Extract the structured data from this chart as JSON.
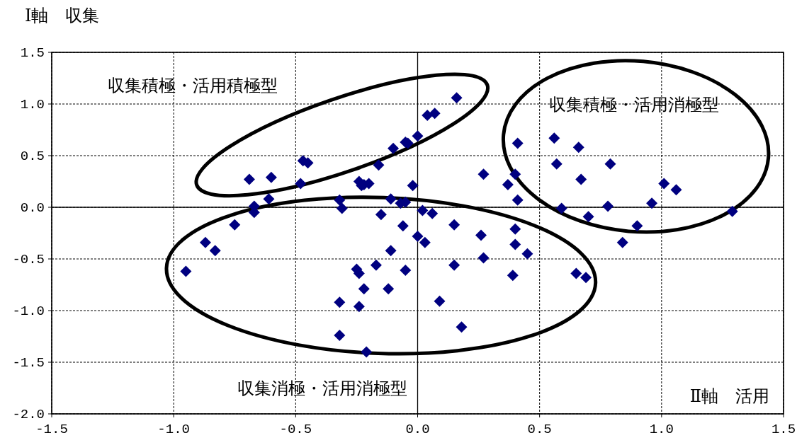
{
  "chart_data": {
    "type": "scatter",
    "ylabel": "Ⅰ軸　収集",
    "xlabel": "Ⅱ軸　活用",
    "annotations": [
      "収集積極・活用積極型",
      "収集積極・活用消極型",
      "収集消極・活用消極型"
    ],
    "xlim": [
      -1.5,
      1.5
    ],
    "ylim": [
      -2.0,
      1.5
    ],
    "xticks": [
      {
        "value": -1.5,
        "label": "-1.5"
      },
      {
        "value": -1.0,
        "label": "-1.0"
      },
      {
        "value": -0.5,
        "label": "-0.5"
      },
      {
        "value": 0,
        "label": "0.0"
      },
      {
        "value": 0.5,
        "label": "0.5"
      },
      {
        "value": 1.0,
        "label": "1.0"
      },
      {
        "value": 1.5,
        "label": "1.5"
      }
    ],
    "yticks": [
      {
        "value": 1.5,
        "label": "1.5"
      },
      {
        "value": 1.0,
        "label": "1.0"
      },
      {
        "value": 0.5,
        "label": "0.5"
      },
      {
        "value": 0,
        "label": "0.0"
      },
      {
        "value": -0.5,
        "label": "-0.5"
      },
      {
        "value": -1.0,
        "label": "-1.0"
      },
      {
        "value": -1.5,
        "label": "-1.5"
      },
      {
        "value": -2.0,
        "label": "-2.0"
      }
    ],
    "grid": true,
    "marker": "diamond",
    "series": [
      {
        "color": "#000080",
        "x": [
          0.16,
          0.04,
          0.07,
          0.0,
          -0.05,
          -0.04,
          -0.1,
          -0.16,
          -0.47,
          -0.45,
          -0.48,
          -0.69,
          -0.6,
          -0.61,
          -0.67,
          -0.67,
          -0.32,
          -0.31,
          -0.24,
          -0.23,
          -0.22,
          -0.2,
          -0.02,
          -0.11,
          -0.07,
          -0.05,
          -0.15,
          0.02,
          0.06,
          -0.06,
          0.0,
          0.03,
          -0.11,
          0.15,
          0.26,
          0.27,
          0.15,
          -0.17,
          -0.25,
          -0.24,
          -0.05,
          -0.75,
          -0.87,
          -0.83,
          -0.95,
          -0.22,
          -0.12,
          -0.32,
          -0.24,
          0.09,
          0.18,
          -0.32,
          -0.21,
          0.27,
          0.41,
          0.37,
          0.4,
          0.41,
          0.4,
          0.4,
          0.45,
          0.39,
          0.65,
          0.69,
          0.56,
          0.57,
          0.66,
          0.67,
          0.59,
          0.7,
          0.79,
          0.78,
          0.84,
          0.9,
          0.96,
          1.01,
          1.06,
          1.29
        ],
        "values": [
          1.06,
          0.89,
          0.91,
          0.69,
          0.63,
          0.62,
          0.57,
          0.41,
          0.45,
          0.43,
          0.23,
          0.27,
          0.29,
          0.08,
          0.01,
          -0.05,
          0.07,
          -0.01,
          0.25,
          0.21,
          0.22,
          0.23,
          0.21,
          0.08,
          0.04,
          0.05,
          -0.07,
          -0.03,
          -0.06,
          -0.18,
          -0.28,
          -0.34,
          -0.42,
          -0.17,
          -0.27,
          -0.49,
          -0.56,
          -0.56,
          -0.6,
          -0.64,
          -0.61,
          -0.17,
          -0.34,
          -0.42,
          -0.62,
          -0.79,
          -0.79,
          -0.92,
          -0.96,
          -0.91,
          -1.16,
          -1.24,
          -1.4,
          0.32,
          0.62,
          0.22,
          0.32,
          0.07,
          -0.21,
          -0.36,
          -0.45,
          -0.66,
          -0.64,
          -0.68,
          0.67,
          0.42,
          0.58,
          0.27,
          -0.01,
          -0.09,
          0.42,
          0.01,
          -0.34,
          -0.18,
          0.04,
          0.23,
          0.17,
          -0.04
        ]
      }
    ]
  }
}
